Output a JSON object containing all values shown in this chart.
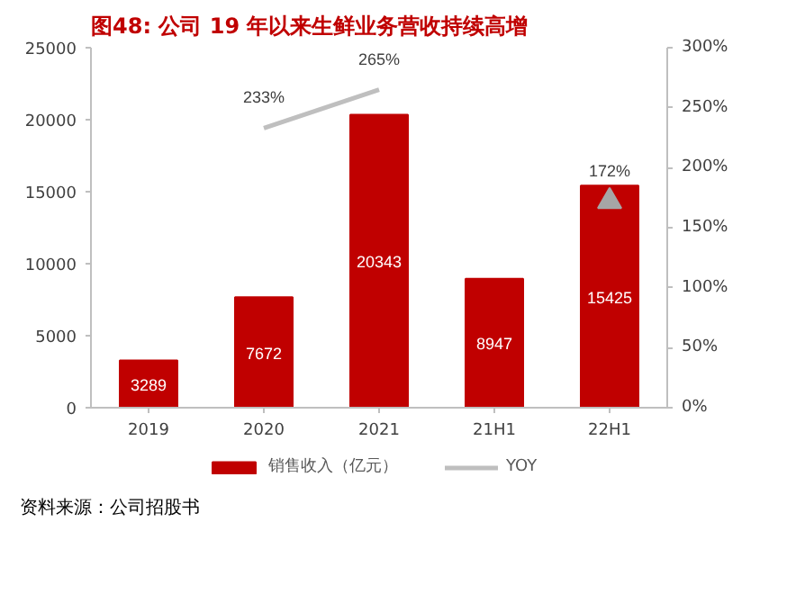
{
  "chart_data": {
    "type": "bar",
    "title": "图48:  公司 19 年以来生鲜业务营收持续高增",
    "categories": [
      "2019",
      "2020",
      "2021",
      "21H1",
      "22H1"
    ],
    "series": [
      {
        "name": "销售收入（亿元）",
        "color": "#c00000",
        "values": [
          3289,
          7672,
          20343,
          8947,
          15425
        ]
      },
      {
        "name": "YOY",
        "type": "line",
        "axis": "y2",
        "color": "#bfbfbf",
        "marker": "none",
        "values": [
          null,
          233,
          265,
          null,
          null
        ],
        "value_labels": [
          null,
          "233%",
          "265%",
          null,
          null
        ]
      },
      {
        "type": "scatter",
        "axis": "y2",
        "color": "#a6a6a6",
        "marker": "triangle",
        "values": [
          null,
          null,
          null,
          null,
          172
        ],
        "value_labels": [
          null,
          null,
          null,
          null,
          "172%"
        ]
      }
    ],
    "data_labels": true,
    "ylim": [
      0,
      25000
    ],
    "yticks": [
      0,
      5000,
      10000,
      15000,
      20000,
      25000
    ],
    "y2lim": [
      0,
      300
    ],
    "y2ticks": [
      {
        "value": 0,
        "label": "0%"
      },
      {
        "value": 50,
        "label": "50%"
      },
      {
        "value": 100,
        "label": "100%"
      },
      {
        "value": 150,
        "label": "150%"
      },
      {
        "value": 200,
        "label": "200%"
      },
      {
        "value": 250,
        "label": "250%"
      },
      {
        "value": 300,
        "label": "300%"
      }
    ],
    "grid": false,
    "legend": "bottom",
    "annotations": [
      "资料来源：公司招股书"
    ]
  }
}
